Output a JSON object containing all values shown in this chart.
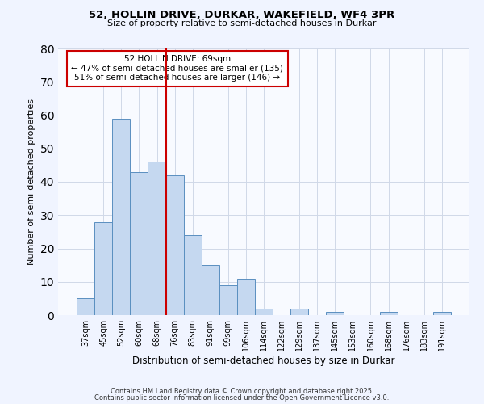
{
  "title1": "52, HOLLIN DRIVE, DURKAR, WAKEFIELD, WF4 3PR",
  "title2": "Size of property relative to semi-detached houses in Durkar",
  "xlabel": "Distribution of semi-detached houses by size in Durkar",
  "ylabel": "Number of semi-detached properties",
  "categories": [
    "37sqm",
    "45sqm",
    "52sqm",
    "60sqm",
    "68sqm",
    "76sqm",
    "83sqm",
    "91sqm",
    "99sqm",
    "106sqm",
    "114sqm",
    "122sqm",
    "129sqm",
    "137sqm",
    "145sqm",
    "153sqm",
    "160sqm",
    "168sqm",
    "176sqm",
    "183sqm",
    "191sqm"
  ],
  "values": [
    5,
    28,
    59,
    43,
    46,
    42,
    24,
    15,
    9,
    11,
    2,
    0,
    2,
    0,
    1,
    0,
    0,
    1,
    0,
    0,
    1
  ],
  "bar_color": "#c5d8f0",
  "bar_edge_color": "#5a8fc0",
  "vline_color": "#cc0000",
  "annotation_title": "52 HOLLIN DRIVE: 69sqm",
  "annotation_line1": "← 47% of semi-detached houses are smaller (135)",
  "annotation_line2": "51% of semi-detached houses are larger (146) →",
  "annotation_box_color": "#cc0000",
  "ylim": [
    0,
    80
  ],
  "yticks": [
    0,
    10,
    20,
    30,
    40,
    50,
    60,
    70,
    80
  ],
  "footer1": "Contains HM Land Registry data © Crown copyright and database right 2025.",
  "footer2": "Contains public sector information licensed under the Open Government Licence v3.0.",
  "bg_color": "#f0f4ff",
  "plot_bg_color": "#f8faff",
  "grid_color": "#d0d8e8"
}
